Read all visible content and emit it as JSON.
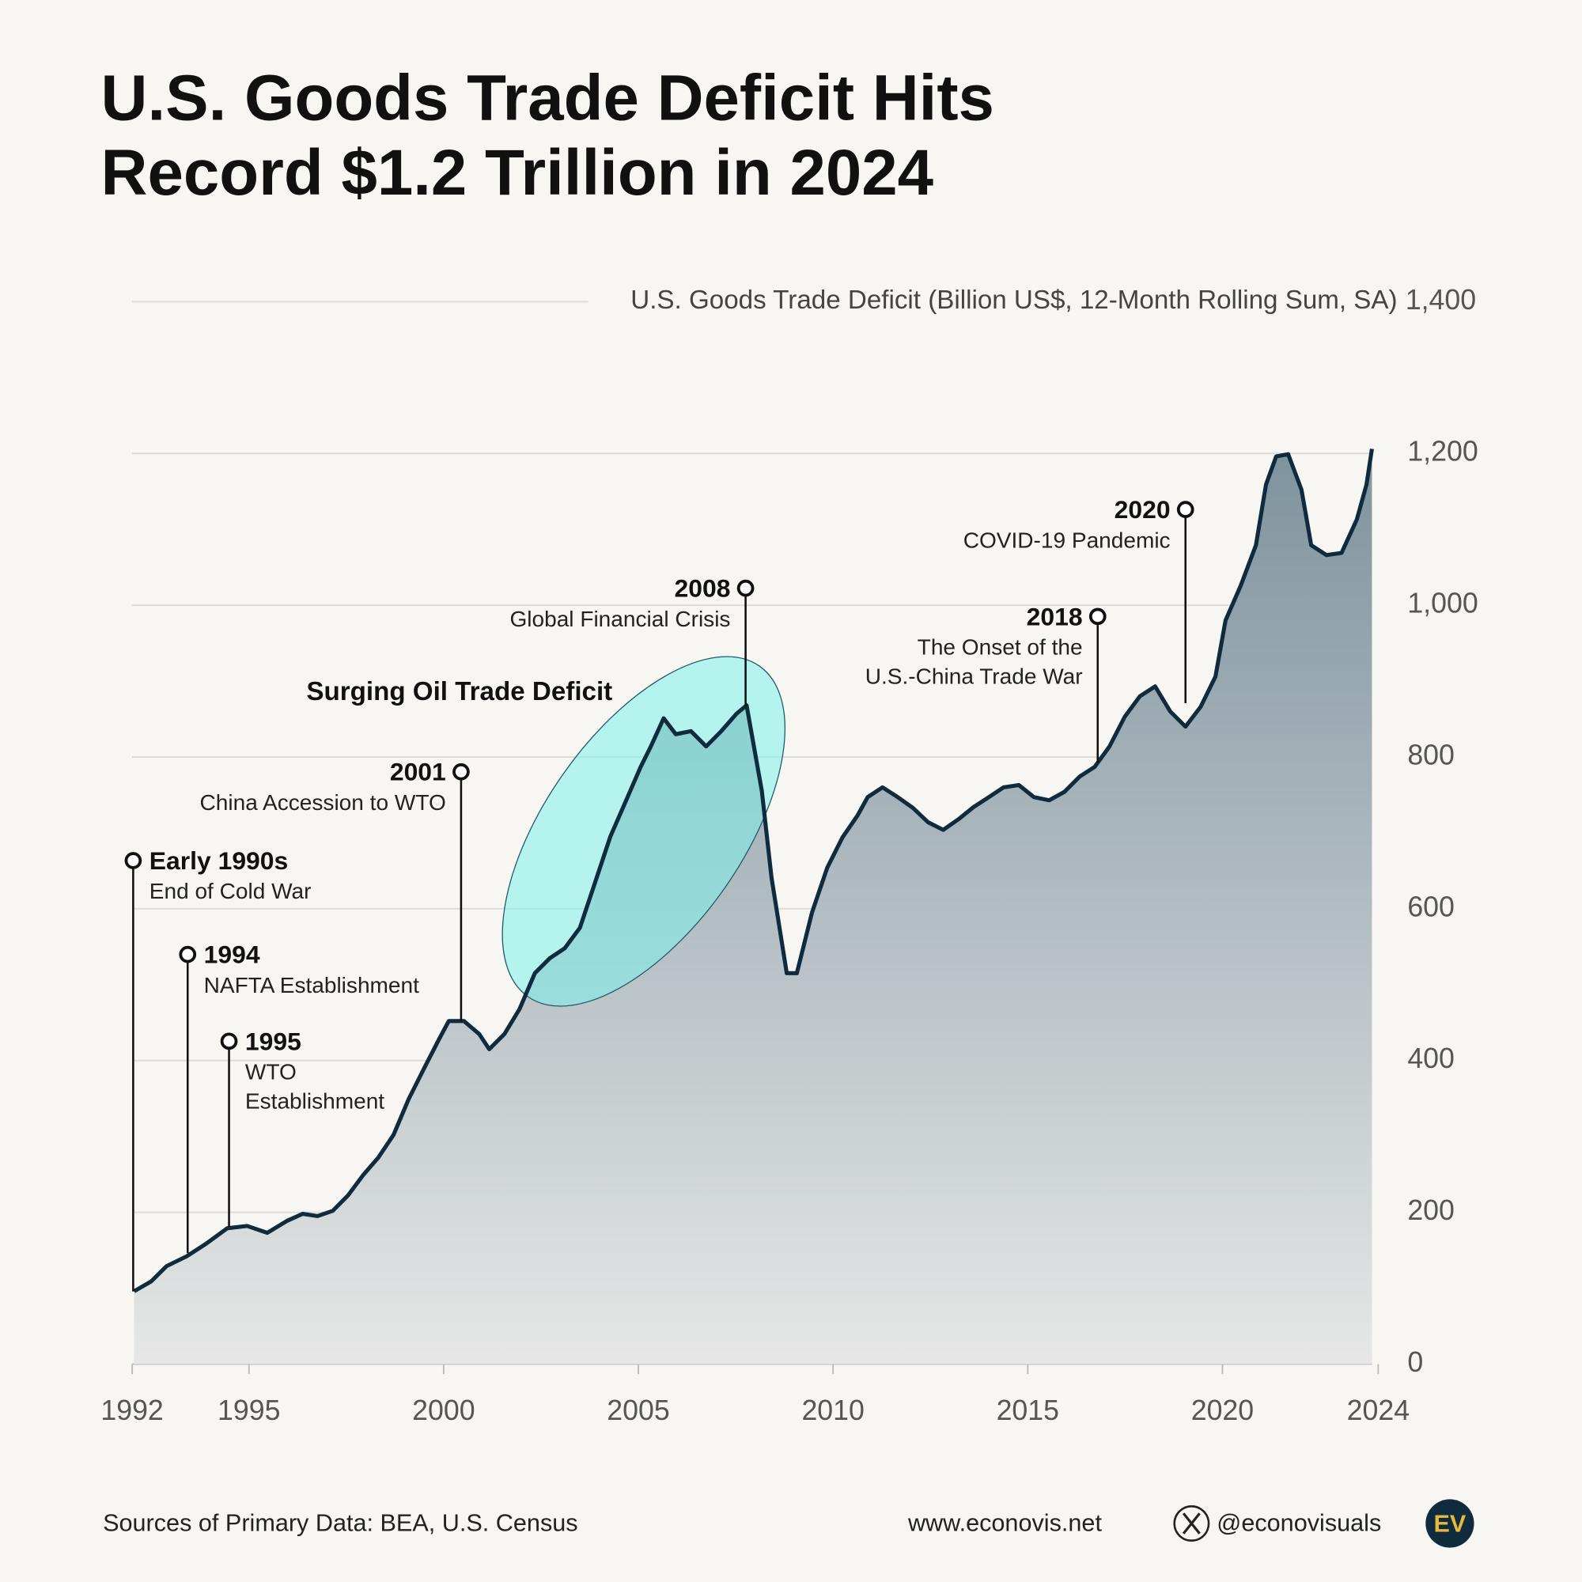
{
  "chart_data": {
    "type": "area",
    "title": [
      "U.S. Goods Trade Deficit Hits",
      "Record $1.2 Trillion in 2024"
    ],
    "y_axis_label": "U.S. Goods Trade Deficit (Billion US$, 12-Month Rolling Sum, SA)",
    "x": [
      1992.05,
      1992.49,
      1992.88,
      1993.4,
      1993.91,
      1994.44,
      1994.95,
      1995.47,
      1995.99,
      1996.38,
      1996.76,
      1997.15,
      1997.54,
      1997.93,
      1998.32,
      1998.71,
      1999.1,
      1999.49,
      1999.88,
      2000.13,
      2000.52,
      2000.91,
      2001.17,
      2001.56,
      2001.95,
      2002.34,
      2002.73,
      2003.11,
      2003.5,
      2003.89,
      2004.28,
      2004.67,
      2005.06,
      2005.32,
      2005.65,
      2005.96,
      2006.35,
      2006.74,
      2007.13,
      2007.52,
      2007.78,
      2008.17,
      2008.42,
      2008.81,
      2009.07,
      2009.46,
      2009.85,
      2010.24,
      2010.63,
      2010.89,
      2011.27,
      2011.66,
      2012.05,
      2012.44,
      2012.83,
      2013.22,
      2013.61,
      2014.0,
      2014.38,
      2014.77,
      2015.16,
      2015.55,
      2015.94,
      2016.33,
      2016.72,
      2017.1,
      2017.49,
      2017.88,
      2018.27,
      2018.66,
      2019.05,
      2019.44,
      2019.82,
      2020.08,
      2020.47,
      2020.86,
      2021.12,
      2021.38,
      2021.69,
      2022.03,
      2022.28,
      2022.67,
      2023.06,
      2023.45,
      2023.7,
      2023.84
    ],
    "series": [
      {
        "color": "#0f2b3d",
        "values": [
          96,
          109,
          129,
          142,
          159,
          179,
          182,
          173,
          189,
          198,
          195,
          202,
          222,
          249,
          272,
          302,
          349,
          389,
          428,
          452,
          452,
          435,
          415,
          435,
          468,
          515,
          535,
          548,
          575,
          635,
          695,
          741,
          787,
          814,
          851,
          830,
          834,
          814,
          834,
          857,
          868,
          755,
          641,
          515,
          515,
          595,
          654,
          694,
          723,
          747,
          760,
          747,
          733,
          714,
          704,
          718,
          734,
          747,
          760,
          763,
          747,
          743,
          754,
          774,
          787,
          814,
          853,
          880,
          893,
          860,
          840,
          866,
          906,
          980,
          1026,
          1079,
          1159,
          1196,
          1199,
          1152,
          1079,
          1066,
          1069,
          1113,
          1159,
          1206
        ]
      }
    ],
    "xlim": [
      1992,
      2024
    ],
    "xticks": [
      1992,
      1995,
      2000,
      2005,
      2010,
      2015,
      2020,
      2024
    ],
    "ylim": [
      0,
      1400
    ],
    "yticks": [
      0,
      200,
      400,
      600,
      800,
      {
        "value": 1000,
        "label": "1,000"
      },
      {
        "value": 1200,
        "label": "1,200"
      },
      {
        "value": 1400,
        "label": "1,400"
      }
    ],
    "grid": true,
    "annotations": [
      {
        "title": "Early 1990s",
        "lines": [
          "End of Cold War"
        ]
      },
      {
        "title": "1994",
        "lines": [
          "NAFTA Establishment"
        ]
      },
      {
        "title": "1995",
        "lines": [
          "WTO",
          "Establishment"
        ]
      },
      {
        "title": "2001",
        "lines": [
          "China Accession to WTO"
        ]
      },
      {
        "title": "2008",
        "lines": [
          "Global Financial Crisis"
        ]
      },
      {
        "title": "2018",
        "lines": [
          "The Onset of the",
          "U.S.-China Trade War"
        ]
      },
      {
        "title": "2020",
        "lines": [
          "COVID-19 Pandemic"
        ]
      }
    ],
    "highlight": "Surging Oil Trade Deficit"
  },
  "footer": {
    "source": "Sources of Primary Data: BEA, U.S. Census",
    "website": "www.econovis.net",
    "handle": "@econovisuals",
    "logo": "EV"
  }
}
